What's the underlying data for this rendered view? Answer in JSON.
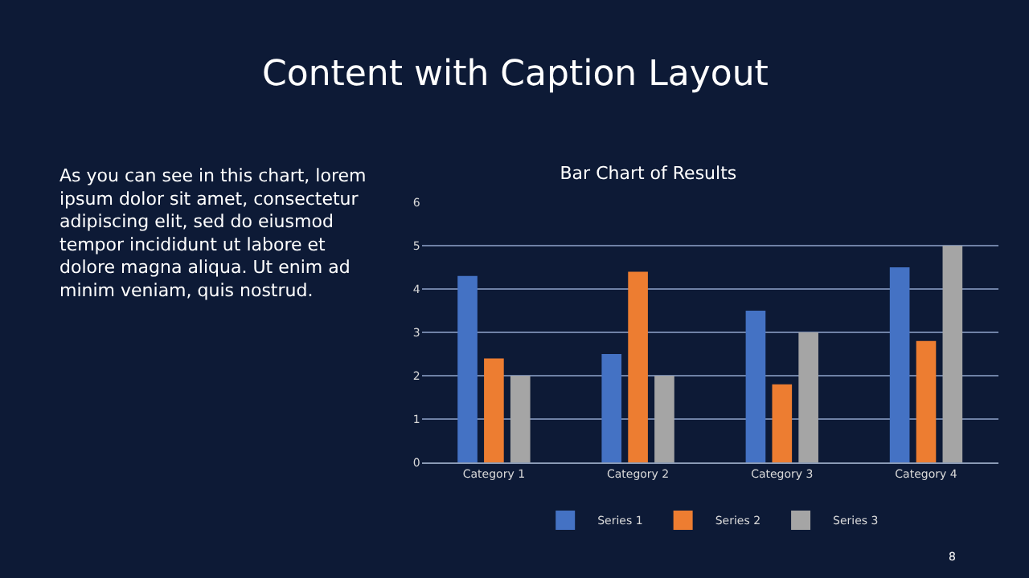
{
  "chart_data": {
    "type": "bar",
    "title": "Bar Chart of Results",
    "annotations": [
      "Content with Caption Layout",
      "As you can see in this chart, lorem ipsum dolor sit amet, consectetur adipiscing elit, sed do eiusmod tempor incididunt ut labore et dolore magna aliqua. Ut enim ad minim veniam, quis nostrud.",
      "8"
    ],
    "categories": [
      "Category 1",
      "Category 2",
      "Category 3",
      "Category 4"
    ],
    "series": [
      {
        "name": "Series 1",
        "color": "#4472c4",
        "values": [
          4.3,
          2.5,
          3.5,
          4.5
        ]
      },
      {
        "name": "Series 2",
        "color": "#ed7d31",
        "values": [
          2.4,
          4.4,
          1.8,
          2.8
        ]
      },
      {
        "name": "Series 3",
        "color": "#a5a5a5",
        "values": [
          2,
          2,
          3,
          5
        ]
      }
    ],
    "ylim": [
      0,
      6
    ],
    "yticks": [
      0,
      1,
      2,
      3,
      4,
      5,
      6
    ],
    "grid": "y",
    "legend": "bottom"
  }
}
